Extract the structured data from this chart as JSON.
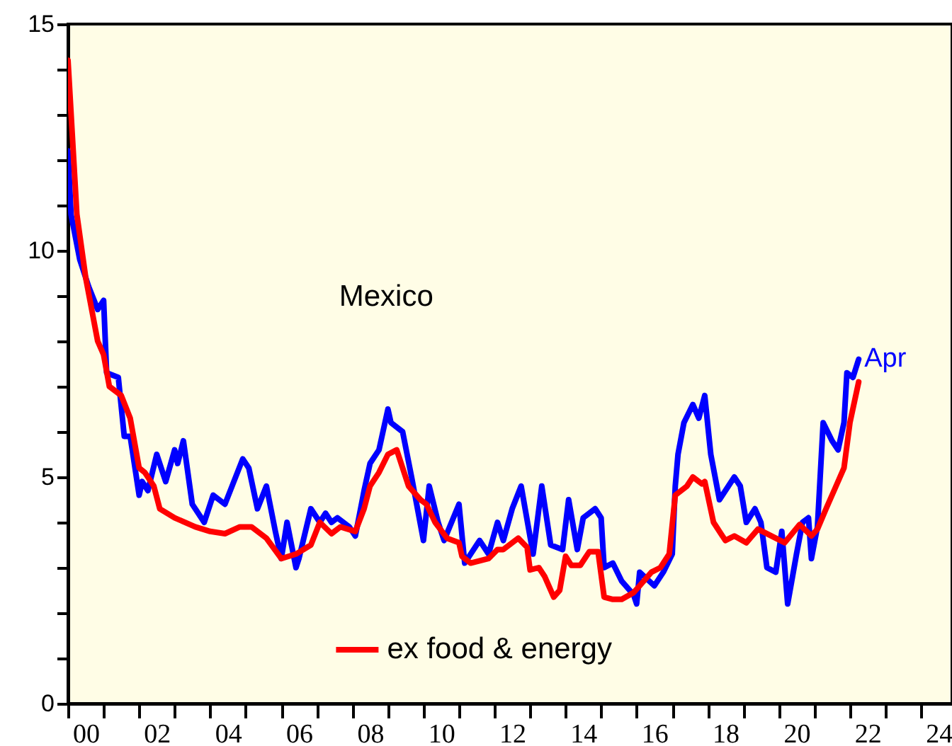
{
  "chart_data": {
    "type": "line",
    "annotations": [
      "Mexico",
      {
        "text": "Apr",
        "x": "2022-04",
        "y": 7.6
      }
    ],
    "xlim": [
      "2000-01-01",
      "2024-11-15"
    ],
    "xticks": [
      {
        "value": "2000",
        "label": null
      },
      {
        "value": "2000-07-01",
        "label": "00"
      },
      {
        "value": "2001",
        "label": null
      },
      {
        "value": "2002",
        "label": null
      },
      {
        "value": "2002-07-01",
        "label": "02"
      },
      {
        "value": "2003",
        "label": null
      },
      {
        "value": "2004",
        "label": null
      },
      {
        "value": "2004-07-01",
        "label": "04"
      },
      {
        "value": "2005",
        "label": null
      },
      {
        "value": "2006",
        "label": null
      },
      {
        "value": "2006-07-01",
        "label": "06"
      },
      {
        "value": "2007",
        "label": null
      },
      {
        "value": "2008",
        "label": null
      },
      {
        "value": "2008-07-01",
        "label": "08"
      },
      {
        "value": "2009",
        "label": null
      },
      {
        "value": "2010",
        "label": null
      },
      {
        "value": "2010-07-01",
        "label": "10"
      },
      {
        "value": "2011",
        "label": null
      },
      {
        "value": "2012",
        "label": null
      },
      {
        "value": "2012-07-01",
        "label": "12"
      },
      {
        "value": "2013",
        "label": null
      },
      {
        "value": "2014",
        "label": null
      },
      {
        "value": "2014-07-01",
        "label": "14"
      },
      {
        "value": "2015",
        "label": null
      },
      {
        "value": "2016",
        "label": null
      },
      {
        "value": "2016-07-01",
        "label": "16"
      },
      {
        "value": "2017",
        "label": null
      },
      {
        "value": "2018",
        "label": null
      },
      {
        "value": "2018-07-01",
        "label": "18"
      },
      {
        "value": "2019",
        "label": null
      },
      {
        "value": "2020",
        "label": null
      },
      {
        "value": "2020-07-01",
        "label": "20"
      },
      {
        "value": "2021",
        "label": null
      },
      {
        "value": "2022",
        "label": null
      },
      {
        "value": "2022-07-01",
        "label": "22"
      },
      {
        "value": "2023",
        "label": null
      },
      {
        "value": "2024",
        "label": null
      },
      {
        "value": "2024-07-01",
        "label": "24"
      }
    ],
    "ylim": [
      0,
      15
    ],
    "yticks": [
      0,
      {
        "value": 1,
        "label": null
      },
      {
        "value": 2,
        "label": null
      },
      {
        "value": 3,
        "label": null
      },
      {
        "value": 4,
        "label": null
      },
      5,
      {
        "value": 6,
        "label": null
      },
      {
        "value": 7,
        "label": null
      },
      {
        "value": 8,
        "label": null
      },
      {
        "value": 9,
        "label": null
      },
      10,
      {
        "value": 11,
        "label": null
      },
      {
        "value": 12,
        "label": null
      },
      {
        "value": 13,
        "label": null
      },
      {
        "value": 14,
        "label": null
      },
      15
    ],
    "legend": "bottom",
    "series": [
      {
        "color": "#0000ff",
        "x": [
          "2000-01",
          "2000-02",
          "2000-05",
          "2000-08",
          "2000-11",
          "2001-01",
          "2001-02",
          "2001-06",
          "2001-08",
          "2001-10",
          "2002-01",
          "2002-02",
          "2002-04",
          "2002-07",
          "2002-10",
          "2003-01",
          "2003-02",
          "2003-04",
          "2003-07",
          "2003-11",
          "2004-02",
          "2004-06",
          "2004-12",
          "2005-02",
          "2005-05",
          "2005-08",
          "2005-11",
          "2006-01",
          "2006-03",
          "2006-06",
          "2006-07",
          "2006-11",
          "2007-02",
          "2007-04",
          "2007-06",
          "2007-08",
          "2007-12",
          "2008-02",
          "2008-05",
          "2008-07",
          "2008-10",
          "2009-01",
          "2009-02",
          "2009-06",
          "2009-09",
          "2010-01",
          "2010-03",
          "2010-06",
          "2010-08",
          "2011-01",
          "2011-03",
          "2011-08",
          "2011-11",
          "2012-02",
          "2012-04",
          "2012-07",
          "2012-10",
          "2013-02",
          "2013-05",
          "2013-08",
          "2013-12",
          "2014-02",
          "2014-05",
          "2014-07",
          "2014-11",
          "2015-01",
          "2015-02",
          "2015-05",
          "2015-08",
          "2015-12",
          "2016-01",
          "2016-02",
          "2016-07",
          "2016-10",
          "2017-01",
          "2017-02",
          "2017-03",
          "2017-05",
          "2017-08",
          "2017-10",
          "2017-12",
          "2018-02",
          "2018-05",
          "2018-10",
          "2018-12",
          "2019-02",
          "2019-05",
          "2019-07",
          "2019-09",
          "2019-12",
          "2020-02",
          "2020-04",
          "2020-07",
          "2020-09",
          "2020-11",
          "2020-12",
          "2021-02",
          "2021-04",
          "2021-07",
          "2021-09",
          "2021-11",
          "2021-12",
          "2022-02",
          "2022-04"
        ],
        "values": [
          12.2,
          10.8,
          9.8,
          9.2,
          8.7,
          8.9,
          7.3,
          7.2,
          5.9,
          5.9,
          4.6,
          4.9,
          4.7,
          5.5,
          4.9,
          5.6,
          5.3,
          5.8,
          4.4,
          4.0,
          4.6,
          4.4,
          5.4,
          5.2,
          4.3,
          4.8,
          3.8,
          3.2,
          4.0,
          3.0,
          3.2,
          4.3,
          4.0,
          4.2,
          4.0,
          4.1,
          3.9,
          3.7,
          4.7,
          5.3,
          5.6,
          6.5,
          6.2,
          6.0,
          5.0,
          3.6,
          4.8,
          4.0,
          3.6,
          4.4,
          3.1,
          3.6,
          3.3,
          4.0,
          3.6,
          4.3,
          4.8,
          3.3,
          4.8,
          3.5,
          3.4,
          4.5,
          3.4,
          4.1,
          4.3,
          4.1,
          3.0,
          3.1,
          2.7,
          2.4,
          2.2,
          2.9,
          2.6,
          2.9,
          3.3,
          4.8,
          5.5,
          6.2,
          6.6,
          6.3,
          6.8,
          5.5,
          4.5,
          5.0,
          4.8,
          4.0,
          4.3,
          4.0,
          3.0,
          2.9,
          3.8,
          2.2,
          3.3,
          4.0,
          4.1,
          3.2,
          3.9,
          6.2,
          5.8,
          5.6,
          6.2,
          7.3,
          7.2,
          7.6
        ]
      },
      {
        "name": "ex food & energy",
        "color": "#ff0000",
        "x": [
          "2000-01",
          "2000-04",
          "2000-07",
          "2000-11",
          "2001-01",
          "2001-03",
          "2001-07",
          "2001-10",
          "2002-01",
          "2002-03",
          "2002-06",
          "2002-08",
          "2003-01",
          "2003-08",
          "2004-01",
          "2004-06",
          "2004-11",
          "2005-03",
          "2005-08",
          "2006-01",
          "2006-06",
          "2006-11",
          "2007-02",
          "2007-06",
          "2007-09",
          "2008-02",
          "2008-05",
          "2008-07",
          "2008-10",
          "2009-01",
          "2009-04",
          "2009-08",
          "2009-12",
          "2010-02",
          "2010-05",
          "2010-09",
          "2011-01",
          "2011-02",
          "2011-05",
          "2011-11",
          "2012-02",
          "2012-04",
          "2012-09",
          "2012-12",
          "2013-01",
          "2013-04",
          "2013-06",
          "2013-09",
          "2013-11",
          "2014-01",
          "2014-03",
          "2014-06",
          "2014-09",
          "2014-12",
          "2015-02",
          "2015-05",
          "2015-08",
          "2015-12",
          "2016-02",
          "2016-06",
          "2016-09",
          "2016-12",
          "2017-02",
          "2017-06",
          "2017-08",
          "2017-11",
          "2017-12",
          "2018-03",
          "2018-07",
          "2018-10",
          "2019-02",
          "2019-06",
          "2019-12",
          "2020-03",
          "2020-08",
          "2020-12",
          "2021-02",
          "2021-05",
          "2021-08",
          "2021-11",
          "2022-01",
          "2022-04"
        ],
        "values": [
          14.2,
          10.8,
          9.4,
          8.0,
          7.7,
          7.0,
          6.8,
          6.3,
          5.2,
          5.1,
          4.8,
          4.3,
          4.1,
          3.9,
          3.8,
          3.75,
          3.9,
          3.9,
          3.65,
          3.2,
          3.3,
          3.5,
          4.0,
          3.75,
          3.9,
          3.8,
          4.3,
          4.8,
          5.1,
          5.5,
          5.6,
          4.8,
          4.5,
          4.4,
          4.0,
          3.65,
          3.55,
          3.25,
          3.1,
          3.2,
          3.4,
          3.4,
          3.65,
          3.45,
          2.95,
          3.0,
          2.8,
          2.35,
          2.5,
          3.25,
          3.05,
          3.05,
          3.35,
          3.35,
          2.35,
          2.3,
          2.3,
          2.45,
          2.6,
          2.9,
          3.0,
          3.3,
          4.6,
          4.8,
          5.0,
          4.85,
          4.9,
          4.0,
          3.6,
          3.7,
          3.55,
          3.85,
          3.65,
          3.55,
          3.95,
          3.7,
          3.85,
          4.3,
          4.75,
          5.2,
          6.2,
          7.1
        ]
      }
    ]
  }
}
